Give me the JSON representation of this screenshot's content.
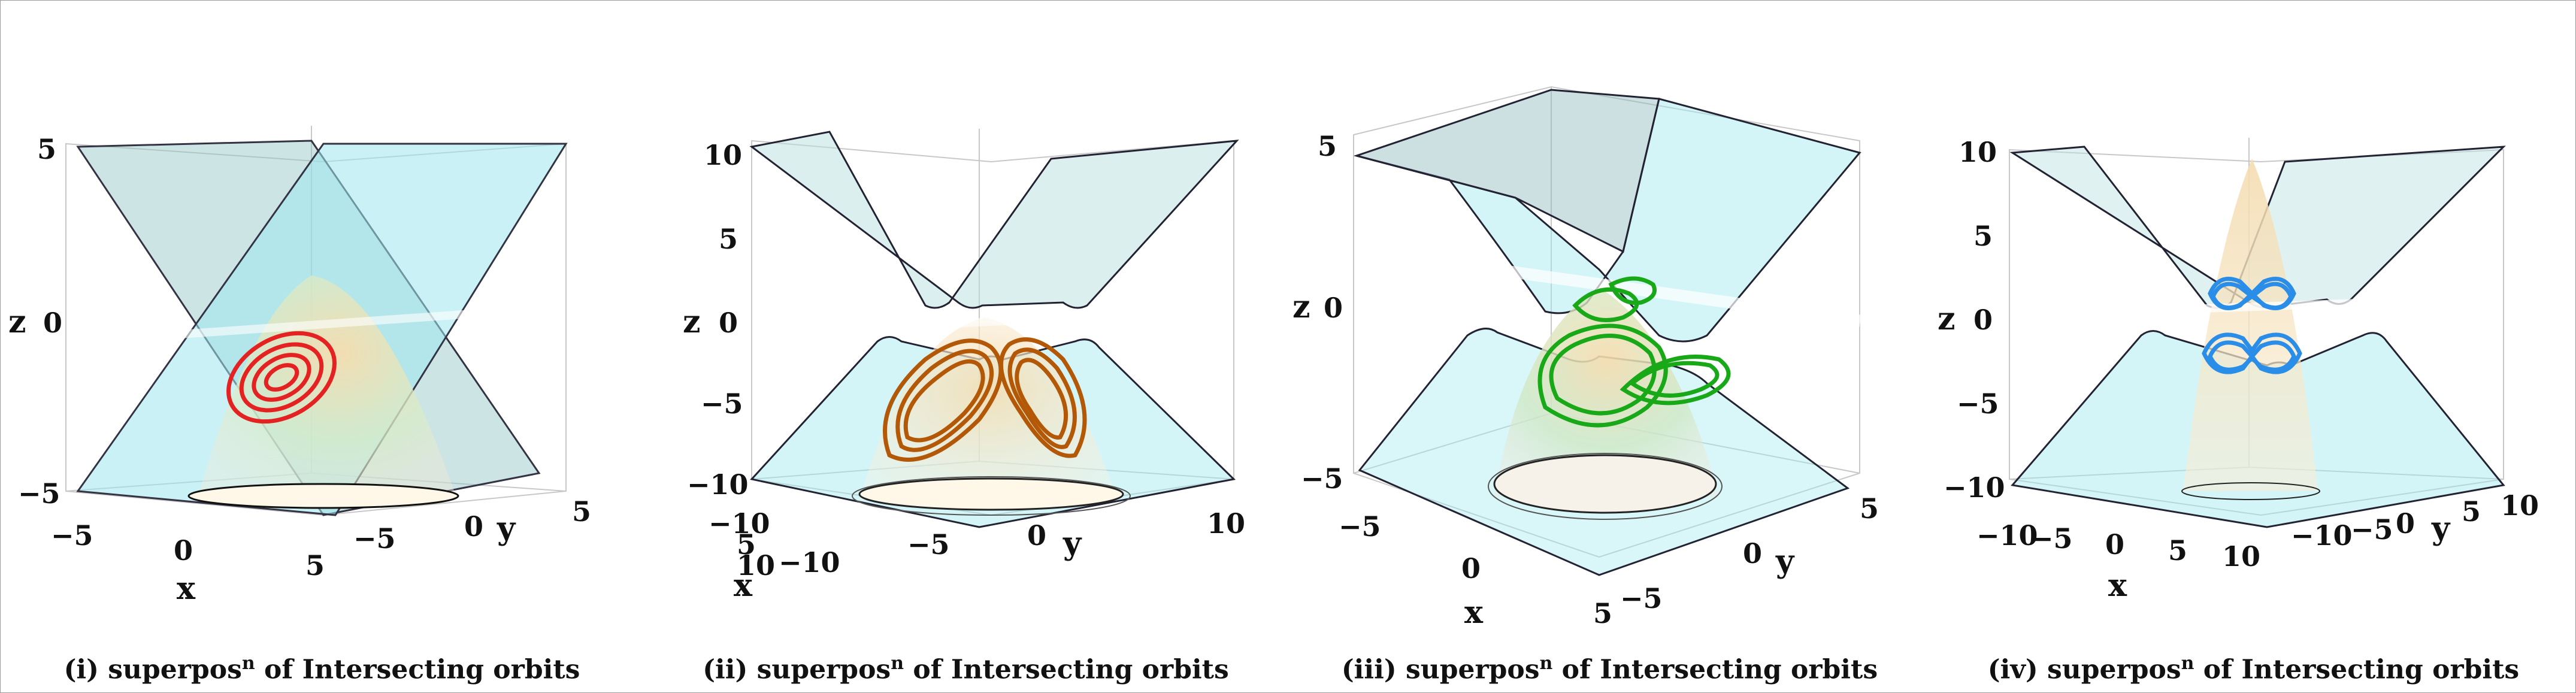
{
  "panels": [
    {
      "id": "i",
      "caption_prefix": "(i) superpos",
      "caption_sup": "n",
      "caption_suffix": " of Intersecting orbits",
      "z_ticks": [
        "5",
        "0",
        "−5"
      ],
      "x_ticks": [
        "−5",
        "0",
        "5"
      ],
      "y_ticks": [
        "−5",
        "0",
        "5"
      ],
      "axis_labels": {
        "x": "x",
        "y": "y",
        "z": "z"
      },
      "orbit_color": "#e52222"
    },
    {
      "id": "ii",
      "caption_prefix": "(ii) superpos",
      "caption_sup": "n",
      "caption_suffix": " of Intersecting orbits",
      "z_ticks": [
        "10",
        "5",
        "0",
        "−5",
        "−10"
      ],
      "x_ticks": [
        "−10",
        "5",
        "10"
      ],
      "y_ticks": [
        "−10",
        "−5",
        "0",
        "10"
      ],
      "axis_labels": {
        "x": "x",
        "y": "y",
        "z": "z"
      },
      "orbit_color": "#b35806"
    },
    {
      "id": "iii",
      "caption_prefix": "(iii) superpos",
      "caption_sup": "n",
      "caption_suffix": " of Intersecting orbits",
      "z_ticks": [
        "5",
        "0",
        "−5"
      ],
      "x_ticks": [
        "−5",
        "0",
        "5"
      ],
      "y_ticks": [
        "−5",
        "0",
        "5"
      ],
      "axis_labels": {
        "x": "x",
        "y": "y",
        "z": "z"
      },
      "orbit_color": "#18a818"
    },
    {
      "id": "iv",
      "caption_prefix": "(iv) superpos",
      "caption_sup": "n",
      "caption_suffix": " of Intersecting orbits",
      "z_ticks": [
        "10",
        "5",
        "0",
        "−5",
        "−10"
      ],
      "x_ticks": [
        "−10",
        "−5",
        "0",
        "5",
        "10"
      ],
      "y_ticks": [
        "−10",
        "−5",
        "0",
        "5",
        "10"
      ],
      "axis_labels": {
        "x": "x",
        "y": "y",
        "z": "z"
      },
      "orbit_color": "#2a8ee8"
    }
  ],
  "colors": {
    "plane": "#9fe8ee",
    "plane_dark": "#8ab3b3",
    "cone_top": "#f4d8a8",
    "cone_mid": "#cfe6c8"
  }
}
